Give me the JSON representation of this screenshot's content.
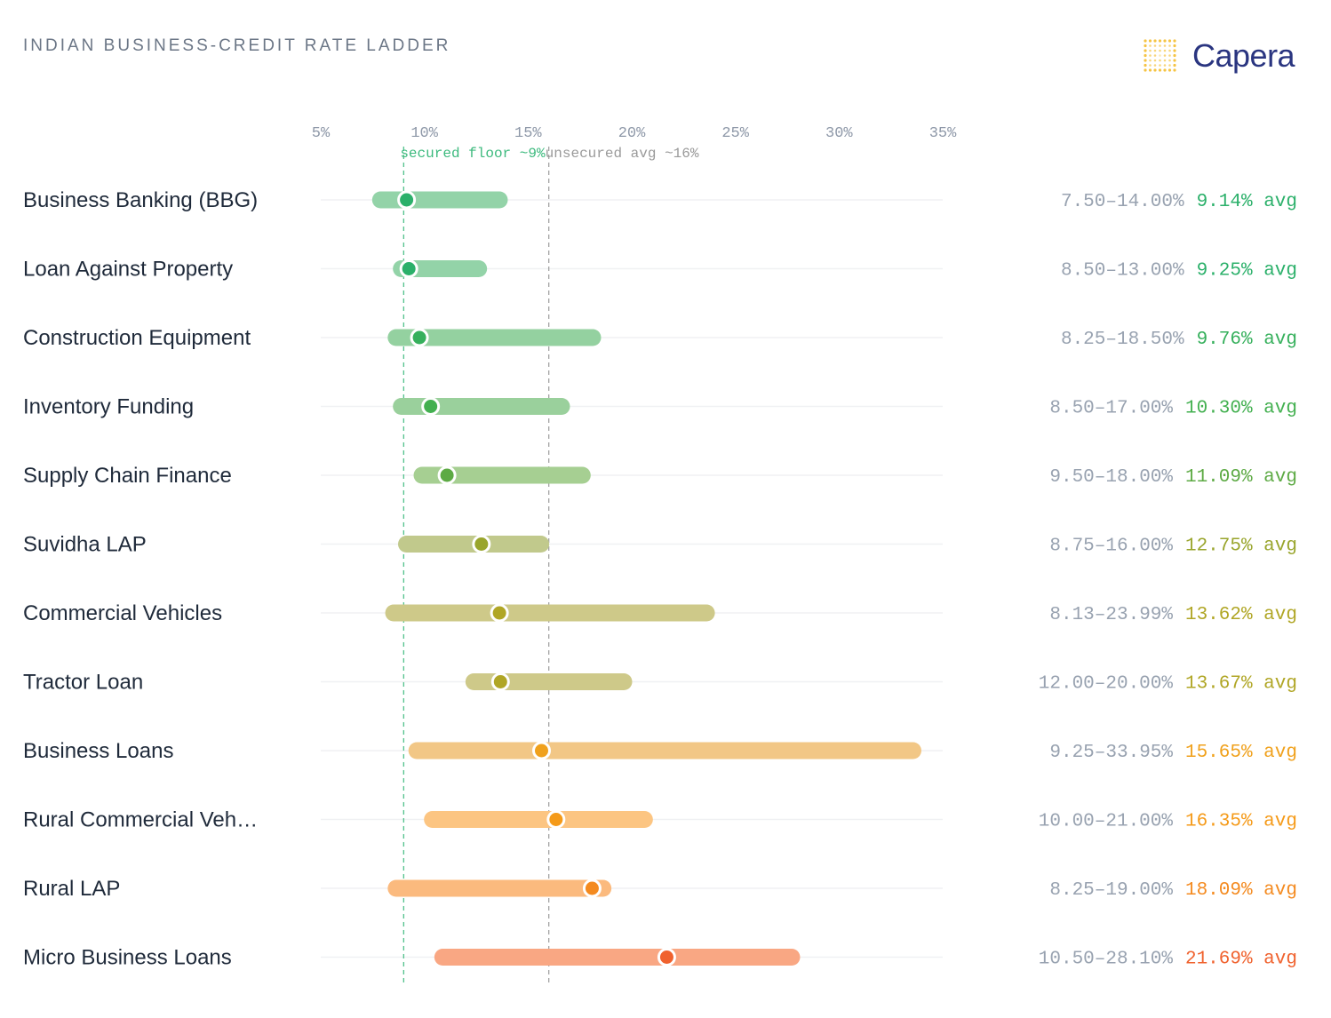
{
  "header": {
    "title": "INDIAN BUSINESS-CREDIT RATE LADDER",
    "brand": "Capera",
    "brand_color": "#2a3580",
    "logo_icon": "dot-grid-icon",
    "logo_color": "#f5c444"
  },
  "chart_data": {
    "type": "range-dot",
    "title": "INDIAN BUSINESS-CREDIT RATE LADDER",
    "x_ticks": [
      "5%",
      "10%",
      "15%",
      "20%",
      "25%",
      "30%",
      "35%"
    ],
    "xlim": [
      5,
      35
    ],
    "grid": "horizontal row guides",
    "reference_lines": [
      {
        "label": "secured floor ~9%",
        "value": 9,
        "color": "#3dba7e"
      },
      {
        "label": "unsecured avg ~16%",
        "value": 16,
        "color": "#9a9a9a"
      }
    ],
    "avg_suffix": "avg",
    "rows": [
      {
        "name": "Business Banking (BBG)",
        "min": 7.5,
        "max": 14.0,
        "avg": 9.14,
        "range_label": "7.50–14.00%",
        "avg_label": "9.14%",
        "bar_color": "#93d3a8",
        "dot_color": "#2bb06a",
        "text_color": "#2bb06a"
      },
      {
        "name": "Loan Against Property",
        "min": 8.5,
        "max": 13.0,
        "avg": 9.25,
        "range_label": "8.50–13.00%",
        "avg_label": "9.25%",
        "bar_color": "#93d3a8",
        "dot_color": "#2bb06a",
        "text_color": "#2bb06a"
      },
      {
        "name": "Construction Equipment",
        "min": 8.25,
        "max": 18.5,
        "avg": 9.76,
        "range_label": "8.25–18.50%",
        "avg_label": "9.76%",
        "bar_color": "#94d1a0",
        "dot_color": "#36b05c",
        "text_color": "#36b05c"
      },
      {
        "name": "Inventory Funding",
        "min": 8.5,
        "max": 17.0,
        "avg": 10.3,
        "range_label": "8.50–17.00%",
        "avg_label": "10.30%",
        "bar_color": "#9ad09c",
        "dot_color": "#43b050",
        "text_color": "#43b050"
      },
      {
        "name": "Supply Chain Finance",
        "min": 9.5,
        "max": 18.0,
        "avg": 11.09,
        "range_label": "9.50–18.00%",
        "avg_label": "11.09%",
        "bar_color": "#a6cf92",
        "dot_color": "#5daa44",
        "text_color": "#5daa44"
      },
      {
        "name": "Suvidha LAP",
        "min": 8.75,
        "max": 16.0,
        "avg": 12.75,
        "range_label": "8.75–16.00%",
        "avg_label": "12.75%",
        "bar_color": "#c1c98c",
        "dot_color": "#99a52c",
        "text_color": "#99a52c"
      },
      {
        "name": "Commercial Vehicles",
        "min": 8.13,
        "max": 23.99,
        "avg": 13.62,
        "range_label": "8.13–23.99%",
        "avg_label": "13.62%",
        "bar_color": "#cec989",
        "dot_color": "#b0a625",
        "text_color": "#b0a625"
      },
      {
        "name": "Tractor Loan",
        "min": 12.0,
        "max": 20.0,
        "avg": 13.67,
        "range_label": "12.00–20.00%",
        "avg_label": "13.67%",
        "bar_color": "#cec989",
        "dot_color": "#b0a625",
        "text_color": "#b0a625"
      },
      {
        "name": "Business Loans",
        "min": 9.25,
        "max": 33.95,
        "avg": 15.65,
        "range_label": "9.25–33.95%",
        "avg_label": "15.65%",
        "bar_color": "#f2c786",
        "dot_color": "#f0a11c",
        "text_color": "#f0a11c"
      },
      {
        "name": "Rural Commercial Veh…",
        "min": 10.0,
        "max": 21.0,
        "avg": 16.35,
        "range_label": "10.00–21.00%",
        "avg_label": "16.35%",
        "bar_color": "#fcc582",
        "dot_color": "#f59a18",
        "text_color": "#f59a18"
      },
      {
        "name": "Rural LAP",
        "min": 8.25,
        "max": 19.0,
        "avg": 18.09,
        "range_label": "8.25–19.00%",
        "avg_label": "18.09%",
        "bar_color": "#fbba7e",
        "dot_color": "#f48a1f",
        "text_color": "#f48a1f"
      },
      {
        "name": "Micro Business Loans",
        "min": 10.5,
        "max": 28.1,
        "avg": 21.69,
        "range_label": "10.50–28.10%",
        "avg_label": "21.69%",
        "bar_color": "#f9a783",
        "dot_color": "#f0622e",
        "text_color": "#f0622e"
      }
    ]
  }
}
